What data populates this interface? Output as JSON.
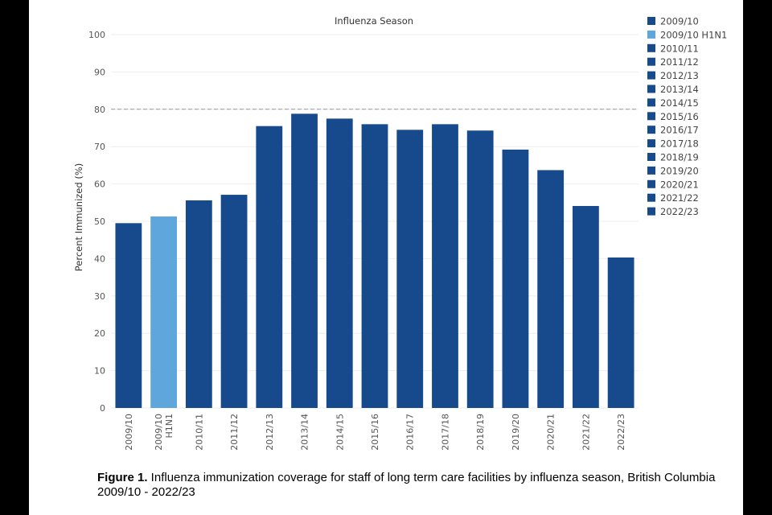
{
  "chart_data": {
    "type": "bar",
    "title": "Influenza Season",
    "ylabel": "Percent Immunized (%)",
    "xlabel": "",
    "ylim": [
      0,
      100
    ],
    "yticks": [
      0,
      10,
      20,
      30,
      40,
      50,
      60,
      70,
      80,
      90,
      100
    ],
    "reference_line": {
      "value": 80,
      "style": "dashed"
    },
    "categories": [
      "2009/10",
      "2009/10 H1N1",
      "2010/11",
      "2011/12",
      "2012/13",
      "2013/14",
      "2014/15",
      "2015/16",
      "2016/17",
      "2017/18",
      "2018/19",
      "2019/20",
      "2020/21",
      "2021/22",
      "2022/23"
    ],
    "tick_labels": [
      [
        "2009/10"
      ],
      [
        "2009/10",
        "H1N1"
      ],
      [
        "2010/11"
      ],
      [
        "2011/12"
      ],
      [
        "2012/13"
      ],
      [
        "2013/14"
      ],
      [
        "2014/15"
      ],
      [
        "2015/16"
      ],
      [
        "2016/17"
      ],
      [
        "2017/18"
      ],
      [
        "2018/19"
      ],
      [
        "2019/20"
      ],
      [
        "2020/21"
      ],
      [
        "2021/22"
      ],
      [
        "2022/23"
      ]
    ],
    "values": [
      49.5,
      51.3,
      55.6,
      57.1,
      75.5,
      78.8,
      77.5,
      76.0,
      74.5,
      76.0,
      74.3,
      69.2,
      63.7,
      54.1,
      40.3
    ],
    "colors": [
      "#164a8c",
      "#5ea6dc",
      "#164a8c",
      "#164a8c",
      "#164a8c",
      "#164a8c",
      "#164a8c",
      "#164a8c",
      "#164a8c",
      "#164a8c",
      "#164a8c",
      "#164a8c",
      "#164a8c",
      "#164a8c",
      "#164a8c"
    ],
    "legend": {
      "position": "right",
      "entries": [
        "2009/10",
        "2009/10 H1N1",
        "2010/11",
        "2011/12",
        "2012/13",
        "2013/14",
        "2014/15",
        "2015/16",
        "2016/17",
        "2017/18",
        "2018/19",
        "2019/20",
        "2020/21",
        "2021/22",
        "2022/23"
      ]
    }
  },
  "caption": {
    "label": "Figure 1.",
    "text": " Influenza immunization coverage for staff of long term care facilities by influenza season, British Columbia 2009/10 - 2022/23"
  }
}
